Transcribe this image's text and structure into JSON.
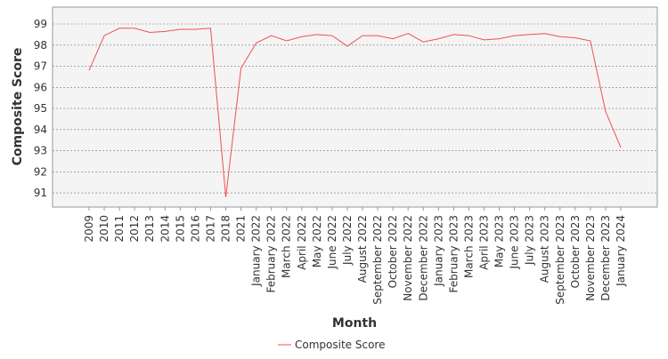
{
  "chart_data": {
    "type": "line",
    "x_label": "Month",
    "y_label": "Composite Score",
    "categories": [
      "2009",
      "2010",
      "2011",
      "2012",
      "2013",
      "2014",
      "2015",
      "2016",
      "2017",
      "2018",
      "2021",
      "January 2022",
      "February 2022",
      "March 2022",
      "April 2022",
      "May 2022",
      "June 2022",
      "July 2022",
      "August 2022",
      "September 2022",
      "October 2022",
      "November 2022",
      "December 2022",
      "January 2023",
      "February 2023",
      "March 2023",
      "April 2023",
      "May 2023",
      "June 2023",
      "July 2023",
      "August 2023",
      "September 2023",
      "October 2023",
      "November 2023",
      "December 2023",
      "January 2024"
    ],
    "series": [
      {
        "name": "Composite Score",
        "color": "#f05050",
        "values": [
          96.8,
          98.45,
          98.8,
          98.8,
          98.6,
          98.65,
          98.75,
          98.75,
          98.8,
          90.8,
          96.9,
          98.1,
          98.45,
          98.2,
          98.4,
          98.5,
          98.45,
          97.95,
          98.45,
          98.45,
          98.3,
          98.55,
          98.15,
          98.3,
          98.5,
          98.45,
          98.25,
          98.3,
          98.45,
          98.5,
          98.55,
          98.4,
          98.35,
          98.2,
          94.85,
          93.15
        ]
      }
    ],
    "ylim": [
      90.33,
      99.8
    ],
    "yticks": [
      91,
      92,
      93,
      94,
      95,
      96,
      97,
      98,
      99
    ],
    "grid": true
  }
}
